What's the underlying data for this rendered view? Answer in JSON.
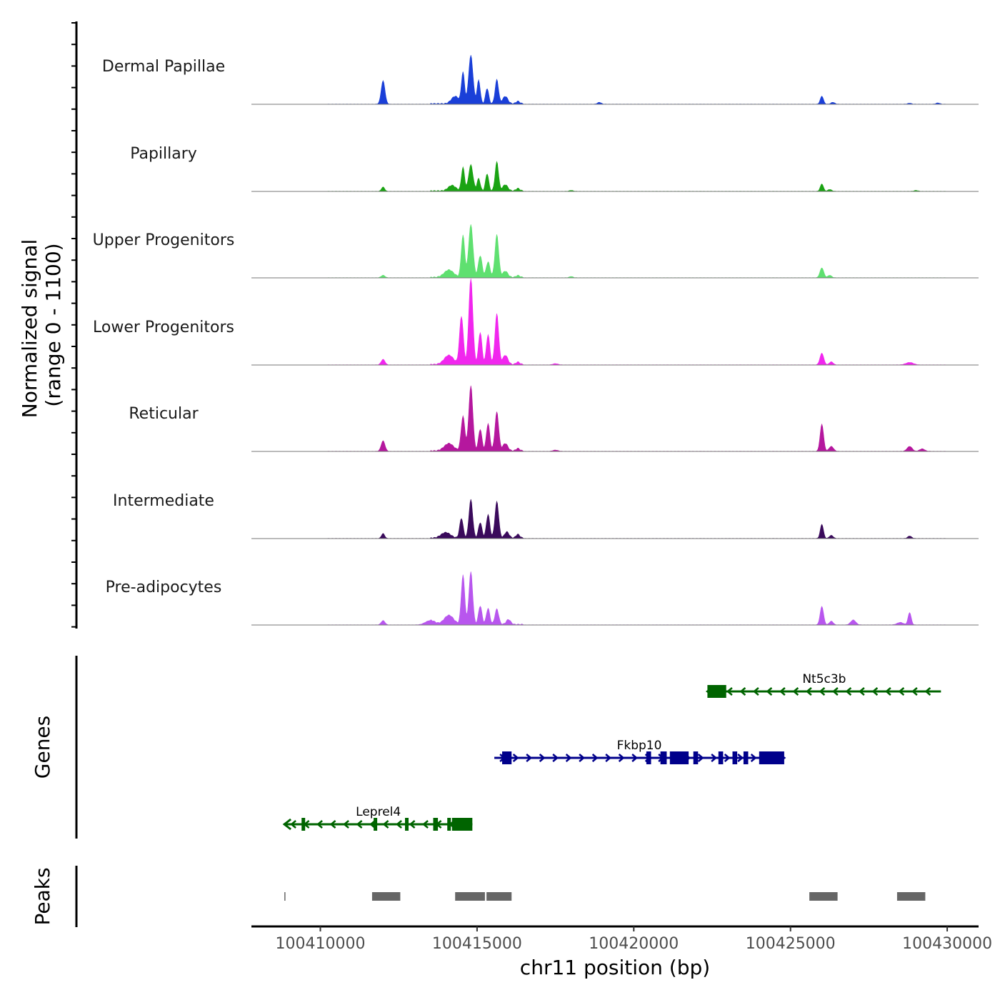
{
  "chart_data": {
    "type": "area",
    "title": "",
    "xlabel": "chr11 position (bp)",
    "ylabel": "Normalized signal\n(range 0 - 1100)",
    "ylabel_line1": "Normalized signal",
    "ylabel_line2": "(range 0 - 1100)",
    "y_range": [
      0,
      1100
    ],
    "x_range": [
      100407800,
      100431000
    ],
    "x_ticks": [
      100410000,
      100415000,
      100420000,
      100425000,
      100430000
    ],
    "x_tick_labels": [
      "100410000",
      "100415000",
      "100420000",
      "100425000",
      "100430000"
    ],
    "series": [
      {
        "name": "Dermal Papillae",
        "color": "#1a3fd8",
        "peaks": [
          [
            100409900,
            15,
            60
          ],
          [
            100412000,
            380,
            60
          ],
          [
            100414300,
            120,
            120
          ],
          [
            100414550,
            500,
            50
          ],
          [
            100414800,
            780,
            70
          ],
          [
            100415050,
            380,
            50
          ],
          [
            100415320,
            250,
            50
          ],
          [
            100415630,
            390,
            55
          ],
          [
            100415900,
            120,
            80
          ],
          [
            100416300,
            40,
            60
          ],
          [
            100418900,
            30,
            60
          ],
          [
            100426000,
            130,
            50
          ],
          [
            100426350,
            30,
            60
          ],
          [
            100428800,
            15,
            60
          ],
          [
            100429700,
            20,
            60
          ]
        ]
      },
      {
        "name": "Papillary",
        "color": "#1aa313",
        "peaks": [
          [
            100410050,
            70,
            50
          ],
          [
            100412000,
            70,
            50
          ],
          [
            100414200,
            90,
            120
          ],
          [
            100414550,
            380,
            50
          ],
          [
            100414800,
            420,
            70
          ],
          [
            100415050,
            200,
            50
          ],
          [
            100415320,
            280,
            50
          ],
          [
            100415630,
            470,
            55
          ],
          [
            100415900,
            100,
            80
          ],
          [
            100416300,
            40,
            60
          ],
          [
            100418000,
            15,
            60
          ],
          [
            100426000,
            120,
            50
          ],
          [
            100426250,
            30,
            60
          ],
          [
            100429000,
            15,
            60
          ]
        ]
      },
      {
        "name": "Upper Progenitors",
        "color": "#5fe070",
        "peaks": [
          [
            100412000,
            40,
            60
          ],
          [
            100414100,
            120,
            150
          ],
          [
            100414550,
            680,
            55
          ],
          [
            100414800,
            850,
            70
          ],
          [
            100415100,
            350,
            60
          ],
          [
            100415350,
            250,
            60
          ],
          [
            100415630,
            690,
            60
          ],
          [
            100415900,
            100,
            80
          ],
          [
            100416300,
            30,
            60
          ],
          [
            100418000,
            20,
            60
          ],
          [
            100426000,
            160,
            60
          ],
          [
            100426250,
            40,
            60
          ]
        ]
      },
      {
        "name": "Lower Progenitors",
        "color": "#f126ee",
        "peaks": [
          [
            100412000,
            90,
            60
          ],
          [
            100414100,
            150,
            150
          ],
          [
            100414500,
            780,
            60
          ],
          [
            100414800,
            1400,
            65
          ],
          [
            100415100,
            520,
            55
          ],
          [
            100415350,
            480,
            55
          ],
          [
            100415630,
            820,
            60
          ],
          [
            100415900,
            150,
            80
          ],
          [
            100416300,
            40,
            60
          ],
          [
            100417500,
            20,
            80
          ],
          [
            100426000,
            190,
            60
          ],
          [
            100426300,
            50,
            60
          ],
          [
            100428800,
            40,
            120
          ]
        ]
      },
      {
        "name": "Reticular",
        "color": "#b5179e",
        "peaks": [
          [
            100412000,
            170,
            60
          ],
          [
            100414100,
            120,
            150
          ],
          [
            100414550,
            560,
            60
          ],
          [
            100414800,
            1050,
            65
          ],
          [
            100415100,
            350,
            55
          ],
          [
            100415350,
            440,
            55
          ],
          [
            100415630,
            630,
            60
          ],
          [
            100415900,
            120,
            80
          ],
          [
            100416300,
            40,
            60
          ],
          [
            100417500,
            20,
            80
          ],
          [
            100426000,
            440,
            55
          ],
          [
            100426300,
            80,
            70
          ],
          [
            100428800,
            80,
            80
          ],
          [
            100429200,
            40,
            80
          ]
        ]
      },
      {
        "name": "Intermediate",
        "color": "#3a0a5b",
        "peaks": [
          [
            100412000,
            80,
            50
          ],
          [
            100414000,
            90,
            150
          ],
          [
            100414500,
            320,
            55
          ],
          [
            100414800,
            620,
            60
          ],
          [
            100415100,
            250,
            55
          ],
          [
            100415350,
            380,
            55
          ],
          [
            100415630,
            590,
            60
          ],
          [
            100415950,
            100,
            70
          ],
          [
            100416300,
            60,
            60
          ],
          [
            100426000,
            230,
            50
          ],
          [
            100426300,
            50,
            60
          ],
          [
            100428800,
            40,
            60
          ]
        ]
      },
      {
        "name": "Pre-adipocytes",
        "color": "#b856ee",
        "peaks": [
          [
            100412000,
            70,
            60
          ],
          [
            100413500,
            70,
            150
          ],
          [
            100414100,
            150,
            150
          ],
          [
            100414550,
            800,
            55
          ],
          [
            100414800,
            850,
            60
          ],
          [
            100415100,
            300,
            55
          ],
          [
            100415350,
            260,
            55
          ],
          [
            100415630,
            250,
            60
          ],
          [
            100416000,
            80,
            70
          ],
          [
            100426000,
            300,
            55
          ],
          [
            100426300,
            60,
            60
          ],
          [
            100427000,
            80,
            80
          ],
          [
            100428800,
            200,
            50
          ],
          [
            100428500,
            40,
            100
          ]
        ]
      }
    ],
    "genes": [
      {
        "name": "Nt5c3b",
        "strand": "-",
        "color": "#006400",
        "start": 100422350,
        "end": 100429800,
        "exons": [
          [
            100422350,
            100422950
          ]
        ]
      },
      {
        "name": "Fkbp10",
        "strand": "+",
        "color": "#00008b",
        "start": 100415550,
        "end": 100424800,
        "exons": [
          [
            100415800,
            100416100
          ],
          [
            100420400,
            100420550
          ],
          [
            100420850,
            100421050
          ],
          [
            100421150,
            100421750
          ],
          [
            100421900,
            100422050
          ],
          [
            100422700,
            100422850
          ],
          [
            100423150,
            100423300
          ],
          [
            100423500,
            100423650
          ],
          [
            100424000,
            100424800
          ]
        ]
      },
      {
        "name": "Leprel4",
        "strand": "-",
        "color": "#006400",
        "start": 100408850,
        "end": 100414850,
        "exons": [
          [
            100409400,
            100409500
          ],
          [
            100411700,
            100411800
          ],
          [
            100412700,
            100412800
          ],
          [
            100413600,
            100413750
          ],
          [
            100414050,
            100414150
          ],
          [
            100414200,
            100414850
          ]
        ]
      }
    ],
    "peaks_track": {
      "label": "Peaks",
      "color": "#666666",
      "regions": [
        [
          100408850,
          100408880
        ],
        [
          100411650,
          100412550
        ],
        [
          100414300,
          100415250
        ],
        [
          100415300,
          100416100
        ],
        [
          100425600,
          100426500
        ],
        [
          100428400,
          100429300
        ]
      ]
    },
    "genes_track_label": "Genes"
  }
}
